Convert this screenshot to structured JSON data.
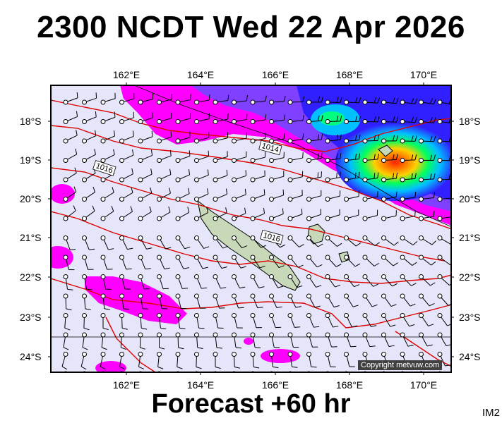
{
  "title": "2300 NCDT Wed 22 Apr 2026",
  "subtitle": "Forecast +60 hr",
  "image_tag": "IM2",
  "copyright": "Copyright metvuw.com",
  "longitude_labels": [
    "162°E",
    "164°E",
    "166°E",
    "168°E",
    "170°E"
  ],
  "latitude_labels": [
    "18°S",
    "19°S",
    "20°S",
    "21°S",
    "22°S",
    "23°S",
    "24°S"
  ],
  "isobar_labels": [
    "1014",
    "1016",
    "1016"
  ],
  "colors": {
    "background": "#e6e6fa",
    "isobar": "#e00000",
    "precip_light": "#ff00ff",
    "precip_mid": "#6040ff",
    "precip_heavy": "#00ff80",
    "precip_peak": "#ff8000"
  }
}
